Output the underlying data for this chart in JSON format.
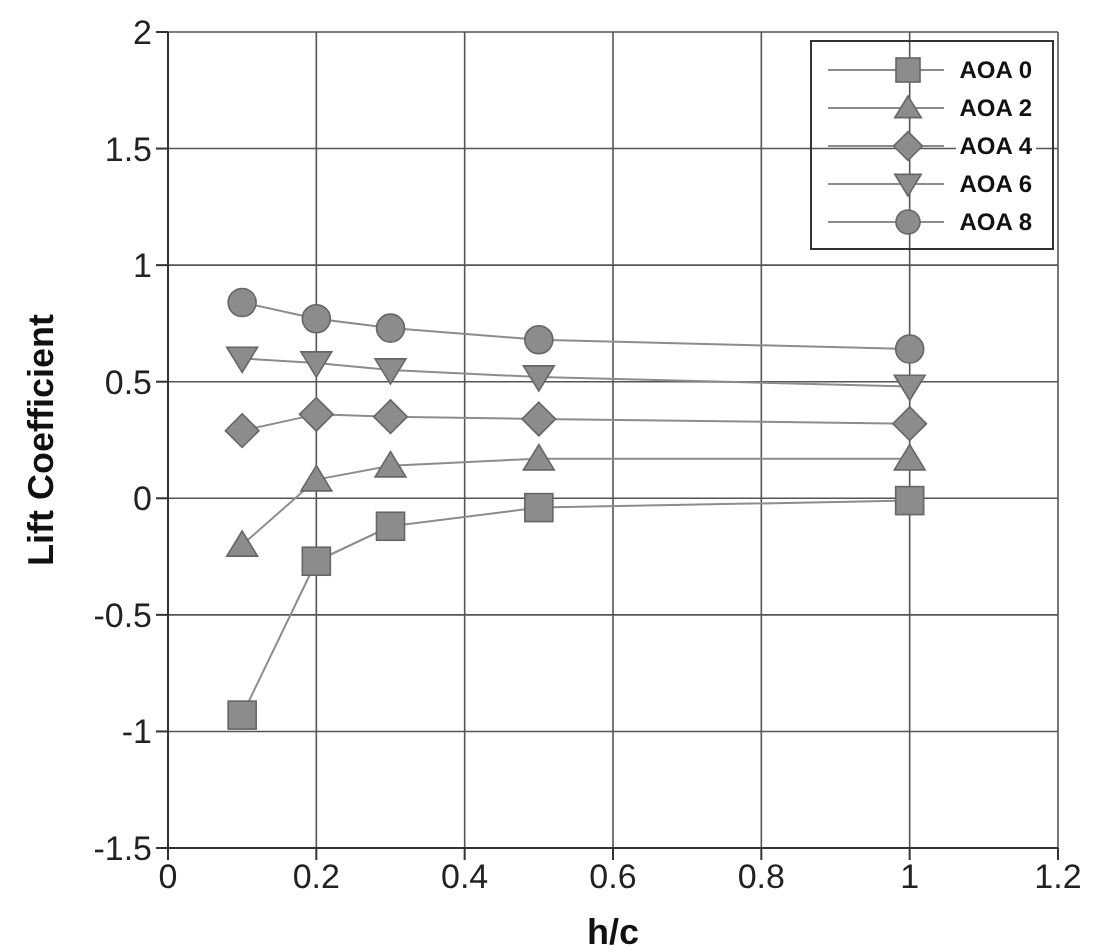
{
  "chart_data": {
    "type": "line",
    "xlabel": "h/c",
    "ylabel": "Lift Coefficient",
    "x": [
      0.1,
      0.2,
      0.3,
      0.5,
      1
    ],
    "series": [
      {
        "name": "AOA 0",
        "color": "#8c8c8c",
        "marker": "square",
        "values": [
          -0.93,
          -0.27,
          -0.12,
          -0.04,
          -0.01
        ]
      },
      {
        "name": "AOA 2",
        "color": "#8c8c8c",
        "marker": "triangle",
        "values": [
          -0.2,
          0.08,
          0.14,
          0.17,
          0.17
        ]
      },
      {
        "name": "AOA 4",
        "color": "#8c8c8c",
        "marker": "diamond",
        "values": [
          0.29,
          0.36,
          0.35,
          0.34,
          0.32
        ]
      },
      {
        "name": "AOA 6",
        "color": "#8c8c8c",
        "marker": "triangle-down",
        "values": [
          0.6,
          0.58,
          0.55,
          0.52,
          0.48
        ]
      },
      {
        "name": "AOA 8",
        "color": "#8c8c8c",
        "marker": "circle",
        "values": [
          0.84,
          0.77,
          0.73,
          0.68,
          0.64
        ]
      }
    ],
    "xlim": [
      0,
      1.2
    ],
    "xticks": [
      0,
      0.2,
      0.4,
      0.6,
      0.8,
      1,
      1.2
    ],
    "ylim": [
      -1.5,
      2
    ],
    "yticks": [
      -1.5,
      -1,
      -0.5,
      0,
      0.5,
      1,
      1.5,
      2
    ],
    "grid": true,
    "legend": "top right"
  }
}
